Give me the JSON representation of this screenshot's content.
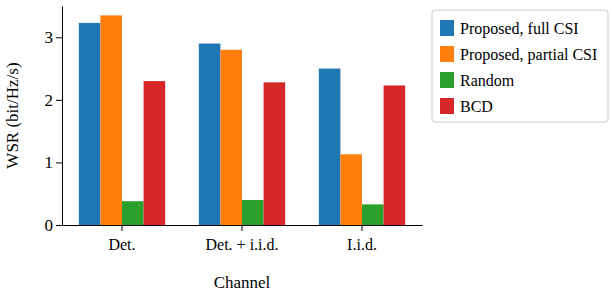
{
  "chart_data": {
    "type": "bar",
    "x_label": "Channel",
    "y_label": "WSR (bit/Hz/s)",
    "categories": [
      "Det.",
      "Det. + i.i.d.",
      "I.i.d."
    ],
    "series": [
      {
        "name": "Proposed, full CSI",
        "color": "#1f77b4",
        "values": [
          3.23,
          2.9,
          2.5
        ]
      },
      {
        "name": "Proposed, partial CSI",
        "color": "#ff7f0e",
        "values": [
          3.35,
          2.8,
          1.13
        ]
      },
      {
        "name": "Random",
        "color": "#2ca02c",
        "values": [
          0.38,
          0.4,
          0.33
        ]
      },
      {
        "name": "BCD",
        "color": "#d62728",
        "values": [
          2.3,
          2.28,
          2.23
        ]
      }
    ],
    "ylim": [
      0,
      3.5
    ],
    "yticks": [
      0,
      1,
      2,
      3
    ],
    "legend": "right",
    "grid": false
  }
}
